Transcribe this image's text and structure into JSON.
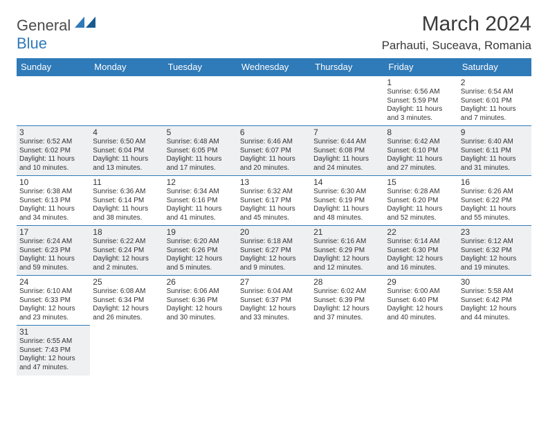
{
  "logo": {
    "part1": "General",
    "part2": "Blue"
  },
  "title": "March 2024",
  "location": "Parhauti, Suceava, Romania",
  "days": [
    "Sunday",
    "Monday",
    "Tuesday",
    "Wednesday",
    "Thursday",
    "Friday",
    "Saturday"
  ],
  "colors": {
    "headerBg": "#2f7ab8",
    "headerText": "#ffffff",
    "altRowBg": "#eef0f1",
    "rowBg": "#ffffff",
    "text": "#333333",
    "ruleColor": "#2f7ab8"
  },
  "weeks": [
    [
      null,
      null,
      null,
      null,
      null,
      {
        "n": "1",
        "sr": "Sunrise: 6:56 AM",
        "ss": "Sunset: 5:59 PM",
        "dl": "Daylight: 11 hours and 3 minutes."
      },
      {
        "n": "2",
        "sr": "Sunrise: 6:54 AM",
        "ss": "Sunset: 6:01 PM",
        "dl": "Daylight: 11 hours and 7 minutes."
      }
    ],
    [
      {
        "n": "3",
        "sr": "Sunrise: 6:52 AM",
        "ss": "Sunset: 6:02 PM",
        "dl": "Daylight: 11 hours and 10 minutes."
      },
      {
        "n": "4",
        "sr": "Sunrise: 6:50 AM",
        "ss": "Sunset: 6:04 PM",
        "dl": "Daylight: 11 hours and 13 minutes."
      },
      {
        "n": "5",
        "sr": "Sunrise: 6:48 AM",
        "ss": "Sunset: 6:05 PM",
        "dl": "Daylight: 11 hours and 17 minutes."
      },
      {
        "n": "6",
        "sr": "Sunrise: 6:46 AM",
        "ss": "Sunset: 6:07 PM",
        "dl": "Daylight: 11 hours and 20 minutes."
      },
      {
        "n": "7",
        "sr": "Sunrise: 6:44 AM",
        "ss": "Sunset: 6:08 PM",
        "dl": "Daylight: 11 hours and 24 minutes."
      },
      {
        "n": "8",
        "sr": "Sunrise: 6:42 AM",
        "ss": "Sunset: 6:10 PM",
        "dl": "Daylight: 11 hours and 27 minutes."
      },
      {
        "n": "9",
        "sr": "Sunrise: 6:40 AM",
        "ss": "Sunset: 6:11 PM",
        "dl": "Daylight: 11 hours and 31 minutes."
      }
    ],
    [
      {
        "n": "10",
        "sr": "Sunrise: 6:38 AM",
        "ss": "Sunset: 6:13 PM",
        "dl": "Daylight: 11 hours and 34 minutes."
      },
      {
        "n": "11",
        "sr": "Sunrise: 6:36 AM",
        "ss": "Sunset: 6:14 PM",
        "dl": "Daylight: 11 hours and 38 minutes."
      },
      {
        "n": "12",
        "sr": "Sunrise: 6:34 AM",
        "ss": "Sunset: 6:16 PM",
        "dl": "Daylight: 11 hours and 41 minutes."
      },
      {
        "n": "13",
        "sr": "Sunrise: 6:32 AM",
        "ss": "Sunset: 6:17 PM",
        "dl": "Daylight: 11 hours and 45 minutes."
      },
      {
        "n": "14",
        "sr": "Sunrise: 6:30 AM",
        "ss": "Sunset: 6:19 PM",
        "dl": "Daylight: 11 hours and 48 minutes."
      },
      {
        "n": "15",
        "sr": "Sunrise: 6:28 AM",
        "ss": "Sunset: 6:20 PM",
        "dl": "Daylight: 11 hours and 52 minutes."
      },
      {
        "n": "16",
        "sr": "Sunrise: 6:26 AM",
        "ss": "Sunset: 6:22 PM",
        "dl": "Daylight: 11 hours and 55 minutes."
      }
    ],
    [
      {
        "n": "17",
        "sr": "Sunrise: 6:24 AM",
        "ss": "Sunset: 6:23 PM",
        "dl": "Daylight: 11 hours and 59 minutes."
      },
      {
        "n": "18",
        "sr": "Sunrise: 6:22 AM",
        "ss": "Sunset: 6:24 PM",
        "dl": "Daylight: 12 hours and 2 minutes."
      },
      {
        "n": "19",
        "sr": "Sunrise: 6:20 AM",
        "ss": "Sunset: 6:26 PM",
        "dl": "Daylight: 12 hours and 5 minutes."
      },
      {
        "n": "20",
        "sr": "Sunrise: 6:18 AM",
        "ss": "Sunset: 6:27 PM",
        "dl": "Daylight: 12 hours and 9 minutes."
      },
      {
        "n": "21",
        "sr": "Sunrise: 6:16 AM",
        "ss": "Sunset: 6:29 PM",
        "dl": "Daylight: 12 hours and 12 minutes."
      },
      {
        "n": "22",
        "sr": "Sunrise: 6:14 AM",
        "ss": "Sunset: 6:30 PM",
        "dl": "Daylight: 12 hours and 16 minutes."
      },
      {
        "n": "23",
        "sr": "Sunrise: 6:12 AM",
        "ss": "Sunset: 6:32 PM",
        "dl": "Daylight: 12 hours and 19 minutes."
      }
    ],
    [
      {
        "n": "24",
        "sr": "Sunrise: 6:10 AM",
        "ss": "Sunset: 6:33 PM",
        "dl": "Daylight: 12 hours and 23 minutes."
      },
      {
        "n": "25",
        "sr": "Sunrise: 6:08 AM",
        "ss": "Sunset: 6:34 PM",
        "dl": "Daylight: 12 hours and 26 minutes."
      },
      {
        "n": "26",
        "sr": "Sunrise: 6:06 AM",
        "ss": "Sunset: 6:36 PM",
        "dl": "Daylight: 12 hours and 30 minutes."
      },
      {
        "n": "27",
        "sr": "Sunrise: 6:04 AM",
        "ss": "Sunset: 6:37 PM",
        "dl": "Daylight: 12 hours and 33 minutes."
      },
      {
        "n": "28",
        "sr": "Sunrise: 6:02 AM",
        "ss": "Sunset: 6:39 PM",
        "dl": "Daylight: 12 hours and 37 minutes."
      },
      {
        "n": "29",
        "sr": "Sunrise: 6:00 AM",
        "ss": "Sunset: 6:40 PM",
        "dl": "Daylight: 12 hours and 40 minutes."
      },
      {
        "n": "30",
        "sr": "Sunrise: 5:58 AM",
        "ss": "Sunset: 6:42 PM",
        "dl": "Daylight: 12 hours and 44 minutes."
      }
    ],
    [
      {
        "n": "31",
        "sr": "Sunrise: 6:55 AM",
        "ss": "Sunset: 7:43 PM",
        "dl": "Daylight: 12 hours and 47 minutes."
      },
      null,
      null,
      null,
      null,
      null,
      null
    ]
  ]
}
